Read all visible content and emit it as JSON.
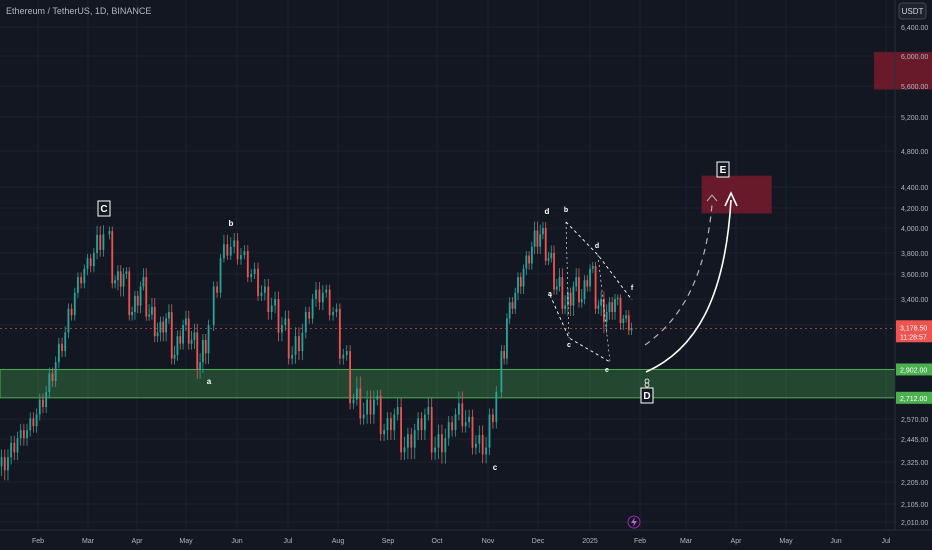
{
  "header": {
    "symbol_title": "Ethereum / TetherUS, 1D, BINANCE",
    "currency_button": "USDT"
  },
  "chart_data": {
    "type": "candlestick",
    "title": "Ethereum / TetherUS, 1D, BINANCE",
    "y_unit": "USDT",
    "ylim": [
      2010,
      6400
    ],
    "price_ticks": [
      "6,400.00",
      "6,000.00",
      "5,600.00",
      "5,200.00",
      "4,800.00",
      "4,400.00",
      "4,200.00",
      "4,000.00",
      "3,800.00",
      "3,600.00",
      "3,400.00",
      "3,200.00",
      "2,570.00",
      "2,445.00",
      "2,325.00",
      "2,205.00",
      "2,105.00",
      "2,010.00"
    ],
    "time_ticks": [
      "Feb",
      "Mar",
      "Apr",
      "May",
      "Jun",
      "Jul",
      "Aug",
      "Sep",
      "Oct",
      "Nov",
      "Dec",
      "2025",
      "Feb",
      "Mar",
      "Apr",
      "May",
      "Jun",
      "Jul"
    ],
    "current_price_label": "3,178.50",
    "countdown_label": "11:28:57",
    "support_zone": {
      "top": 2902,
      "bottom": 2712,
      "top_label": "2,902.00",
      "bottom_label": "2,712.00"
    },
    "target_zones": [
      {
        "name": "upper-target",
        "from_date": "2025-06-10",
        "to_date": "2025-07-18",
        "low": 5560,
        "high": 6050
      },
      {
        "name": "E-target",
        "from_date": "2025-02-28",
        "to_date": "2025-04-10",
        "low": 4150,
        "high": 4520
      }
    ],
    "waves": [
      {
        "label": "C",
        "date": "2024-03-12",
        "price": 4090,
        "boxed": true
      },
      {
        "label": "a",
        "date": "2024-05-01",
        "price": 2820,
        "boxed": false
      },
      {
        "label": "b",
        "date": "2024-05-27",
        "price": 3990,
        "boxed": false
      },
      {
        "label": "c",
        "date": "2024-11-04",
        "price": 2360,
        "boxed": false
      },
      {
        "label": "d",
        "date": "2024-12-16",
        "price": 4110,
        "boxed": false
      },
      {
        "label": "D",
        "date": "2025-01-31",
        "price": 2790,
        "boxed": true
      },
      {
        "label": "E",
        "date": "2025-03-25",
        "price": 4580,
        "boxed": true
      }
    ],
    "triangle_labels": [
      {
        "label": "b",
        "date": "2024-12-22",
        "price": 4105
      },
      {
        "label": "a",
        "date": "2024-12-12",
        "price": 3480
      },
      {
        "label": "c",
        "date": "2024-12-24",
        "price": 3140
      },
      {
        "label": "d",
        "date": "2025-01-05",
        "price": 3790
      },
      {
        "label": "e",
        "date": "2025-01-15",
        "price": 2890
      },
      {
        "label": "f",
        "date": "2025-01-28",
        "price": 3420
      }
    ],
    "candles_ohlc": [
      [
        2300,
        2400,
        2200,
        2350
      ],
      [
        2350,
        2500,
        2300,
        2450
      ],
      [
        2450,
        2550,
        2400,
        2500
      ],
      [
        2500,
        2650,
        2450,
        2600
      ],
      [
        2600,
        2800,
        2550,
        2750
      ],
      [
        2750,
        3000,
        2700,
        2950
      ],
      [
        2950,
        3200,
        2900,
        3150
      ],
      [
        3150,
        3500,
        3100,
        3450
      ],
      [
        3450,
        3700,
        3400,
        3650
      ],
      [
        3650,
        3850,
        3550,
        3800
      ],
      [
        3800,
        4090,
        3700,
        3950
      ],
      [
        3950,
        4000,
        3500,
        3550
      ],
      [
        3550,
        3700,
        3400,
        3600
      ],
      [
        3600,
        3650,
        3250,
        3300
      ],
      [
        3300,
        3550,
        3200,
        3500
      ],
      [
        3500,
        3650,
        3250,
        3280
      ],
      [
        3280,
        3400,
        3100,
        3150
      ],
      [
        3150,
        3300,
        3050,
        3250
      ],
      [
        3250,
        3350,
        2950,
        3000
      ],
      [
        3000,
        3250,
        2950,
        3200
      ],
      [
        3200,
        3300,
        3050,
        3100
      ],
      [
        3100,
        3200,
        2850,
        2950
      ],
      [
        2950,
        3250,
        2820,
        3200
      ],
      [
        3200,
        3800,
        3150,
        3750
      ],
      [
        3750,
        3990,
        3700,
        3850
      ],
      [
        3850,
        3950,
        3700,
        3780
      ],
      [
        3780,
        3850,
        3550,
        3600
      ],
      [
        3600,
        3700,
        3400,
        3450
      ],
      [
        3450,
        3550,
        3250,
        3350
      ],
      [
        3350,
        3450,
        3100,
        3200
      ],
      [
        3200,
        3300,
        2950,
        3000
      ],
      [
        3000,
        3250,
        2900,
        3150
      ],
      [
        3150,
        3450,
        3100,
        3400
      ],
      [
        3400,
        3550,
        3300,
        3450
      ],
      [
        3450,
        3500,
        3250,
        3300
      ],
      [
        3300,
        3350,
        2950,
        3000
      ],
      [
        3000,
        3050,
        2650,
        2700
      ],
      [
        2700,
        2850,
        2550,
        2600
      ],
      [
        2600,
        2800,
        2500,
        2700
      ],
      [
        2700,
        2750,
        2450,
        2500
      ],
      [
        2500,
        2650,
        2400,
        2600
      ],
      [
        2600,
        2700,
        2350,
        2400
      ],
      [
        2400,
        2550,
        2300,
        2500
      ],
      [
        2500,
        2650,
        2400,
        2600
      ],
      [
        2600,
        2700,
        2350,
        2400
      ],
      [
        2400,
        2550,
        2300,
        2450
      ],
      [
        2450,
        2650,
        2400,
        2600
      ],
      [
        2600,
        2750,
        2500,
        2550
      ],
      [
        2550,
        2620,
        2380,
        2420
      ],
      [
        2420,
        2520,
        2330,
        2400
      ],
      [
        2400,
        2800,
        2350,
        2750
      ],
      [
        2750,
        3300,
        2700,
        3250
      ],
      [
        3250,
        3500,
        3200,
        3450
      ],
      [
        3450,
        3700,
        3350,
        3650
      ],
      [
        3650,
        3900,
        3550,
        3850
      ],
      [
        3850,
        4110,
        3750,
        3950
      ],
      [
        3950,
        4050,
        3700,
        3750
      ],
      [
        3750,
        3850,
        3450,
        3500
      ],
      [
        3500,
        3650,
        3300,
        3350
      ],
      [
        3350,
        3550,
        3200,
        3500
      ],
      [
        3500,
        3650,
        3350,
        3400
      ],
      [
        3400,
        3700,
        3350,
        3650
      ],
      [
        3650,
        3700,
        3300,
        3350
      ],
      [
        3350,
        3450,
        3150,
        3300
      ],
      [
        3300,
        3450,
        3200,
        3400
      ],
      [
        3400,
        3420,
        3180,
        3250
      ],
      [
        3250,
        3300,
        3150,
        3178
      ]
    ]
  }
}
